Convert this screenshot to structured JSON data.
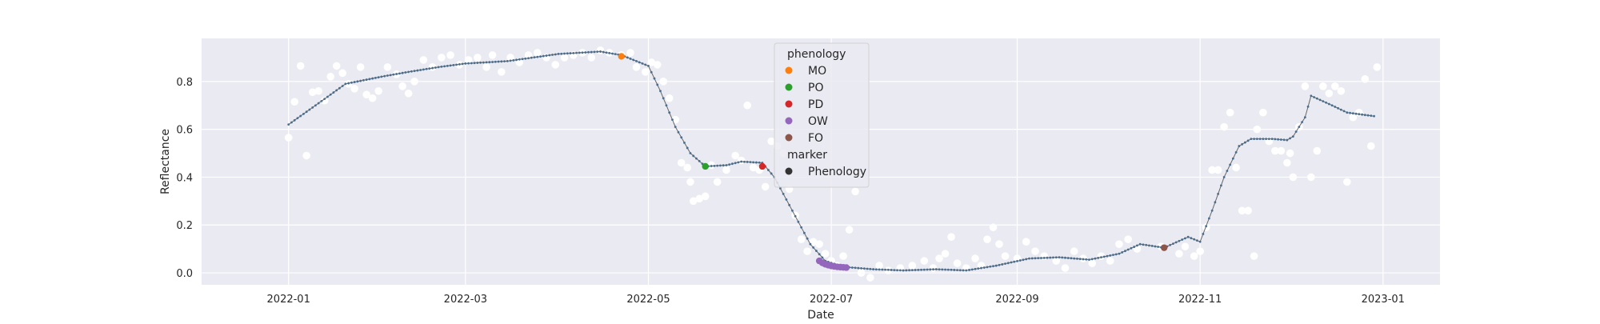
{
  "chart_data": {
    "type": "scatter",
    "xlabel": "Date",
    "ylabel": "Reflectance",
    "xlim": [
      "2021-12-03",
      "2023-01-20"
    ],
    "ylim": [
      -0.05,
      0.98
    ],
    "x_ticks": [
      "2022-01-01",
      "2022-03-01",
      "2022-05-01",
      "2022-07-01",
      "2022-09-01",
      "2022-11-01",
      "2023-01-01"
    ],
    "x_tick_labels": [
      "2022-01",
      "2022-03",
      "2022-05",
      "2022-07",
      "2022-09",
      "2022-11",
      "2023-01"
    ],
    "y_ticks": [
      0.0,
      0.2,
      0.4,
      0.6,
      0.8
    ],
    "y_tick_labels": [
      "0.0",
      "0.2",
      "0.4",
      "0.6",
      "0.8"
    ],
    "grid": true,
    "background": "#eaeaf2",
    "legend": {
      "placement": "top-center",
      "groups": [
        {
          "title": "phenology",
          "entries": [
            {
              "label": "MO",
              "color": "#ff7f0e"
            },
            {
              "label": "PO",
              "color": "#2ca02c"
            },
            {
              "label": "PD",
              "color": "#d62728"
            },
            {
              "label": "OW",
              "color": "#9467bd"
            },
            {
              "label": "FO",
              "color": "#8c564b"
            }
          ]
        },
        {
          "title": "marker",
          "entries": [
            {
              "label": "Phenology",
              "color": "#333333"
            }
          ]
        }
      ]
    },
    "raw_series": {
      "color": "#ffffff",
      "points": [
        [
          "2022-01-01",
          0.565
        ],
        [
          "2022-01-03",
          0.715
        ],
        [
          "2022-01-05",
          0.865
        ],
        [
          "2022-01-07",
          0.49
        ],
        [
          "2022-01-09",
          0.755
        ],
        [
          "2022-01-11",
          0.76
        ],
        [
          "2022-01-13",
          0.72
        ],
        [
          "2022-01-15",
          0.82
        ],
        [
          "2022-01-17",
          0.865
        ],
        [
          "2022-01-19",
          0.835
        ],
        [
          "2022-01-21",
          0.79
        ],
        [
          "2022-01-23",
          0.77
        ],
        [
          "2022-01-25",
          0.86
        ],
        [
          "2022-01-27",
          0.745
        ],
        [
          "2022-01-29",
          0.73
        ],
        [
          "2022-01-31",
          0.76
        ],
        [
          "2022-02-03",
          0.86
        ],
        [
          "2022-02-06",
          0.83
        ],
        [
          "2022-02-08",
          0.78
        ],
        [
          "2022-02-10",
          0.75
        ],
        [
          "2022-02-12",
          0.8
        ],
        [
          "2022-02-15",
          0.89
        ],
        [
          "2022-02-18",
          0.86
        ],
        [
          "2022-02-21",
          0.9
        ],
        [
          "2022-02-24",
          0.91
        ],
        [
          "2022-02-27",
          0.87
        ],
        [
          "2022-03-02",
          0.89
        ],
        [
          "2022-03-05",
          0.9
        ],
        [
          "2022-03-08",
          0.86
        ],
        [
          "2022-03-10",
          0.91
        ],
        [
          "2022-03-13",
          0.84
        ],
        [
          "2022-03-16",
          0.9
        ],
        [
          "2022-03-19",
          0.88
        ],
        [
          "2022-03-22",
          0.91
        ],
        [
          "2022-03-25",
          0.92
        ],
        [
          "2022-03-28",
          0.9
        ],
        [
          "2022-03-31",
          0.87
        ],
        [
          "2022-04-03",
          0.9
        ],
        [
          "2022-04-06",
          0.91
        ],
        [
          "2022-04-09",
          0.92
        ],
        [
          "2022-04-12",
          0.9
        ],
        [
          "2022-04-15",
          0.93
        ],
        [
          "2022-04-18",
          0.92
        ],
        [
          "2022-04-22",
          0.91
        ],
        [
          "2022-04-25",
          0.92
        ],
        [
          "2022-04-27",
          0.86
        ],
        [
          "2022-04-30",
          0.84
        ],
        [
          "2022-05-02",
          0.88
        ],
        [
          "2022-05-04",
          0.87
        ],
        [
          "2022-05-06",
          0.8
        ],
        [
          "2022-05-08",
          0.73
        ],
        [
          "2022-05-10",
          0.64
        ],
        [
          "2022-05-12",
          0.46
        ],
        [
          "2022-05-14",
          0.44
        ],
        [
          "2022-05-15",
          0.38
        ],
        [
          "2022-05-16",
          0.3
        ],
        [
          "2022-05-18",
          0.31
        ],
        [
          "2022-05-20",
          0.32
        ],
        [
          "2022-05-22",
          0.45
        ],
        [
          "2022-05-24",
          0.38
        ],
        [
          "2022-05-27",
          0.43
        ],
        [
          "2022-05-30",
          0.49
        ],
        [
          "2022-06-01",
          0.47
        ],
        [
          "2022-06-03",
          0.7
        ],
        [
          "2022-06-05",
          0.44
        ],
        [
          "2022-06-07",
          0.43
        ],
        [
          "2022-06-09",
          0.36
        ],
        [
          "2022-06-11",
          0.55
        ],
        [
          "2022-06-13",
          0.53
        ],
        [
          "2022-06-15",
          0.5
        ],
        [
          "2022-06-17",
          0.35
        ],
        [
          "2022-06-19",
          0.24
        ],
        [
          "2022-06-21",
          0.14
        ],
        [
          "2022-06-23",
          0.09
        ],
        [
          "2022-06-25",
          0.13
        ],
        [
          "2022-06-27",
          0.12
        ],
        [
          "2022-06-29",
          0.08
        ],
        [
          "2022-07-01",
          0.05
        ],
        [
          "2022-07-03",
          0.03
        ],
        [
          "2022-07-05",
          0.07
        ],
        [
          "2022-07-07",
          0.18
        ],
        [
          "2022-07-09",
          0.34
        ],
        [
          "2022-07-11",
          0.0
        ],
        [
          "2022-07-14",
          -0.02
        ],
        [
          "2022-07-17",
          0.03
        ],
        [
          "2022-07-20",
          0.01
        ],
        [
          "2022-07-24",
          0.02
        ],
        [
          "2022-07-28",
          0.03
        ],
        [
          "2022-08-01",
          0.05
        ],
        [
          "2022-08-04",
          0.02
        ],
        [
          "2022-08-06",
          0.06
        ],
        [
          "2022-08-08",
          0.08
        ],
        [
          "2022-08-10",
          0.15
        ],
        [
          "2022-08-12",
          0.04
        ],
        [
          "2022-08-15",
          0.02
        ],
        [
          "2022-08-18",
          0.06
        ],
        [
          "2022-08-20",
          0.03
        ],
        [
          "2022-08-22",
          0.14
        ],
        [
          "2022-08-24",
          0.19
        ],
        [
          "2022-08-26",
          0.12
        ],
        [
          "2022-08-28",
          0.07
        ],
        [
          "2022-09-01",
          0.06
        ],
        [
          "2022-09-04",
          0.13
        ],
        [
          "2022-09-07",
          0.09
        ],
        [
          "2022-09-10",
          0.07
        ],
        [
          "2022-09-14",
          0.05
        ],
        [
          "2022-09-17",
          0.02
        ],
        [
          "2022-09-20",
          0.09
        ],
        [
          "2022-09-23",
          0.06
        ],
        [
          "2022-09-26",
          0.04
        ],
        [
          "2022-09-29",
          0.07
        ],
        [
          "2022-10-02",
          0.05
        ],
        [
          "2022-10-05",
          0.12
        ],
        [
          "2022-10-08",
          0.14
        ],
        [
          "2022-10-11",
          0.1
        ],
        [
          "2022-10-19",
          0.11
        ],
        [
          "2022-10-25",
          0.08
        ],
        [
          "2022-10-27",
          0.11
        ],
        [
          "2022-10-30",
          0.07
        ],
        [
          "2022-11-01",
          0.09
        ],
        [
          "2022-11-03",
          0.19
        ],
        [
          "2022-11-05",
          0.43
        ],
        [
          "2022-11-07",
          0.43
        ],
        [
          "2022-11-09",
          0.61
        ],
        [
          "2022-11-11",
          0.67
        ],
        [
          "2022-11-13",
          0.44
        ],
        [
          "2022-11-15",
          0.26
        ],
        [
          "2022-11-17",
          0.26
        ],
        [
          "2022-11-19",
          0.07
        ],
        [
          "2022-11-20",
          0.6
        ],
        [
          "2022-11-22",
          0.67
        ],
        [
          "2022-11-24",
          0.55
        ],
        [
          "2022-11-26",
          0.51
        ],
        [
          "2022-11-28",
          0.51
        ],
        [
          "2022-11-30",
          0.46
        ],
        [
          "2022-12-01",
          0.5
        ],
        [
          "2022-12-02",
          0.4
        ],
        [
          "2022-12-04",
          0.61
        ],
        [
          "2022-12-06",
          0.78
        ],
        [
          "2022-12-08",
          0.4
        ],
        [
          "2022-12-10",
          0.51
        ],
        [
          "2022-12-12",
          0.78
        ],
        [
          "2022-12-14",
          0.75
        ],
        [
          "2022-12-16",
          0.78
        ],
        [
          "2022-12-18",
          0.76
        ],
        [
          "2022-12-20",
          0.38
        ],
        [
          "2022-12-22",
          0.65
        ],
        [
          "2022-12-24",
          0.67
        ],
        [
          "2022-12-26",
          0.81
        ],
        [
          "2022-12-28",
          0.53
        ],
        [
          "2022-12-30",
          0.86
        ]
      ]
    },
    "smoothed_series": {
      "color": "#4a6d8c",
      "line_color": "#666666",
      "points": [
        [
          "2022-01-01",
          0.62
        ],
        [
          "2022-01-10",
          0.7
        ],
        [
          "2022-01-20",
          0.79
        ],
        [
          "2022-02-01",
          0.82
        ],
        [
          "2022-02-10",
          0.84
        ],
        [
          "2022-02-20",
          0.86
        ],
        [
          "2022-03-01",
          0.875
        ],
        [
          "2022-03-15",
          0.885
        ],
        [
          "2022-04-01",
          0.915
        ],
        [
          "2022-04-15",
          0.925
        ],
        [
          "2022-04-22",
          0.91
        ],
        [
          "2022-05-01",
          0.865
        ],
        [
          "2022-05-05",
          0.76
        ],
        [
          "2022-05-10",
          0.61
        ],
        [
          "2022-05-15",
          0.5
        ],
        [
          "2022-05-20",
          0.445
        ],
        [
          "2022-05-27",
          0.45
        ],
        [
          "2022-06-01",
          0.465
        ],
        [
          "2022-06-08",
          0.46
        ],
        [
          "2022-06-12",
          0.4
        ],
        [
          "2022-06-18",
          0.26
        ],
        [
          "2022-06-24",
          0.12
        ],
        [
          "2022-06-29",
          0.05
        ],
        [
          "2022-07-05",
          0.025
        ],
        [
          "2022-07-15",
          0.015
        ],
        [
          "2022-07-25",
          0.01
        ],
        [
          "2022-08-05",
          0.015
        ],
        [
          "2022-08-15",
          0.01
        ],
        [
          "2022-08-25",
          0.03
        ],
        [
          "2022-09-05",
          0.06
        ],
        [
          "2022-09-15",
          0.065
        ],
        [
          "2022-09-25",
          0.055
        ],
        [
          "2022-10-05",
          0.08
        ],
        [
          "2022-10-12",
          0.12
        ],
        [
          "2022-10-20",
          0.105
        ],
        [
          "2022-10-28",
          0.15
        ],
        [
          "2022-11-01",
          0.13
        ],
        [
          "2022-11-05",
          0.26
        ],
        [
          "2022-11-09",
          0.4
        ],
        [
          "2022-11-14",
          0.53
        ],
        [
          "2022-11-18",
          0.56
        ],
        [
          "2022-11-25",
          0.56
        ],
        [
          "2022-11-30",
          0.555
        ],
        [
          "2022-12-02",
          0.57
        ],
        [
          "2022-12-06",
          0.65
        ],
        [
          "2022-12-08",
          0.74
        ],
        [
          "2022-12-15",
          0.7
        ],
        [
          "2022-12-20",
          0.67
        ],
        [
          "2022-12-29",
          0.655
        ]
      ]
    },
    "phenology_points": [
      {
        "label": "MO",
        "date": "2022-04-22",
        "value": 0.905,
        "color": "#ff7f0e"
      },
      {
        "label": "PO",
        "date": "2022-05-20",
        "value": 0.445,
        "color": "#2ca02c"
      },
      {
        "label": "PD",
        "date": "2022-06-08",
        "value": 0.445,
        "color": "#d62728"
      },
      {
        "label": "OW",
        "dates": [
          "2022-06-27",
          "2022-06-28",
          "2022-06-29",
          "2022-06-30",
          "2022-07-01",
          "2022-07-02",
          "2022-07-03",
          "2022-07-04",
          "2022-07-05",
          "2022-07-06"
        ],
        "values": [
          0.05,
          0.042,
          0.036,
          0.032,
          0.029,
          0.027,
          0.025,
          0.024,
          0.023,
          0.022
        ],
        "color": "#9467bd"
      },
      {
        "label": "FO",
        "date": "2022-10-20",
        "value": 0.105,
        "color": "#8c564b"
      }
    ]
  }
}
